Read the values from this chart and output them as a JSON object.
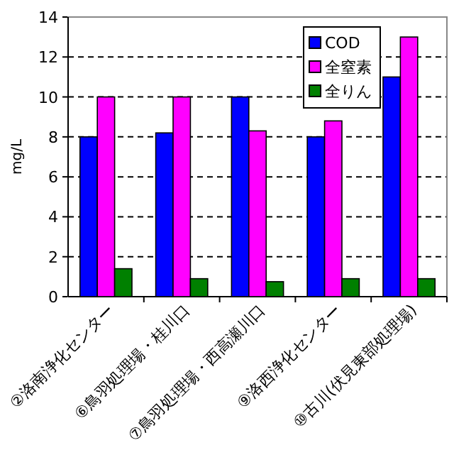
{
  "chart_data": {
    "type": "bar",
    "ylabel": "mg/L",
    "categories": [
      "②洛南浄化センター",
      "⑥鳥羽処理場・桂川口",
      "⑦鳥羽処理場・西高瀬川口",
      "⑨洛西浄化センター",
      "⑩古川(伏見東部処理場)"
    ],
    "series": [
      {
        "name": "COD",
        "color": "#0000ff",
        "values": [
          8,
          8.2,
          10,
          8,
          11
        ]
      },
      {
        "name": "全窒素",
        "color": "#ff00ff",
        "values": [
          10,
          10,
          8.3,
          8.8,
          13
        ]
      },
      {
        "name": "全りん",
        "color": "#008000",
        "values": [
          1.4,
          0.9,
          0.75,
          0.9,
          0.9
        ]
      }
    ],
    "ylim": [
      0,
      14
    ],
    "yticks": [
      0,
      2,
      4,
      6,
      8,
      10,
      12,
      14
    ],
    "grid": "y",
    "legend": "top right"
  }
}
